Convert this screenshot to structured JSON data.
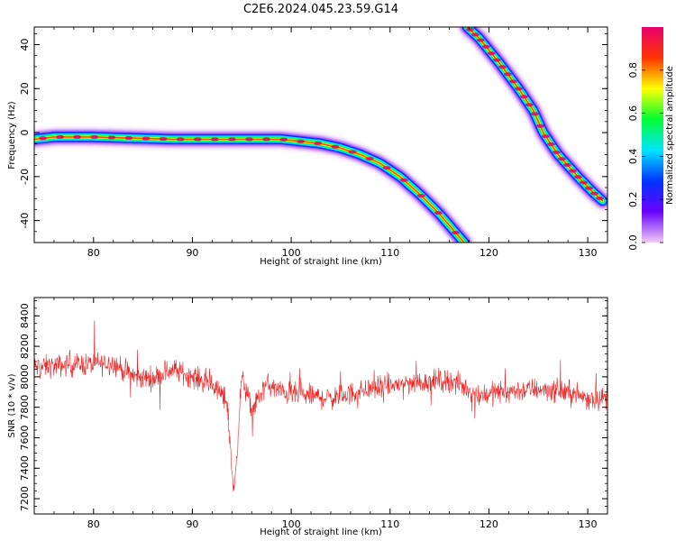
{
  "title": "C2E6.2024.045.23.59.G14",
  "chart_data": [
    {
      "type": "heatmap",
      "xlabel": "Height of straight line (km)",
      "ylabel": "Frequency (Hz)",
      "xlim": [
        74,
        132
      ],
      "ylim": [
        -50,
        48
      ],
      "xticks": [
        80,
        90,
        100,
        110,
        120,
        130
      ],
      "xtick_labels": [
        "80",
        "90",
        "100",
        "110",
        "120",
        "130"
      ],
      "yticks": [
        40,
        20,
        0,
        -20,
        -40
      ],
      "ytick_labels": [
        "40",
        "20",
        "0",
        "-20",
        "-40"
      ],
      "colorbar": {
        "label": "Normalized spectral amplitude",
        "range": [
          0,
          1
        ],
        "ticks": [
          0.0,
          0.2,
          0.4,
          0.6,
          0.8
        ],
        "tick_labels": [
          "0.0",
          "0.2",
          "0.4",
          "0.6",
          "0.8"
        ],
        "colors": [
          "#f2ccf5",
          "#6a00ff",
          "#0033ff",
          "#00e6ff",
          "#00ff33",
          "#ffff00",
          "#ff3300",
          "#e8006e"
        ]
      },
      "tracks": [
        {
          "name": "",
          "x": [
            74,
            76,
            80,
            84,
            88,
            92,
            96,
            99,
            101,
            103,
            105,
            107,
            109,
            111,
            113,
            115,
            117.5
          ],
          "y": [
            -3,
            -2,
            -2,
            -2.5,
            -3,
            -3,
            -3,
            -3,
            -4,
            -5,
            -7,
            -10,
            -14,
            -20,
            -28,
            -37,
            -50
          ]
        },
        {
          "name": "",
          "x": [
            117.8,
            119,
            121,
            123,
            124.5,
            125.5,
            127,
            129,
            130.5,
            131.5
          ],
          "y": [
            48,
            43,
            32,
            20,
            10,
            0,
            -10,
            -20,
            -27,
            -31
          ]
        }
      ]
    },
    {
      "type": "line",
      "xlabel": "Height of straight line (km)",
      "ylabel": "SNR (10 * v/v)",
      "xlim": [
        74,
        132
      ],
      "ylim": [
        7100,
        8520
      ],
      "xticks": [
        80,
        90,
        100,
        110,
        120,
        130
      ],
      "xtick_labels": [
        "80",
        "90",
        "100",
        "110",
        "120",
        "130"
      ],
      "yticks": [
        8400,
        8200,
        8000,
        7800,
        7600,
        7400,
        7200
      ],
      "ytick_labels": [
        "8400",
        "8200",
        "8000",
        "7800",
        "7600",
        "7400",
        "7200"
      ],
      "color": "#ee2222",
      "series": [
        {
          "name": "",
          "trend_x": [
            74,
            78,
            82,
            84,
            86,
            88,
            90,
            92,
            93.5,
            94.2,
            95,
            96,
            97.5,
            99,
            101,
            104,
            108,
            112,
            116,
            119,
            121,
            125,
            128,
            130,
            132
          ],
          "trend_y": [
            8060,
            8080,
            8090,
            8000,
            7990,
            8050,
            8000,
            7950,
            7840,
            7220,
            8000,
            7780,
            7950,
            7900,
            7880,
            7860,
            7920,
            7960,
            7980,
            7880,
            7900,
            7920,
            7900,
            7860,
            7860
          ],
          "noise_amplitude": 110
        }
      ]
    }
  ]
}
